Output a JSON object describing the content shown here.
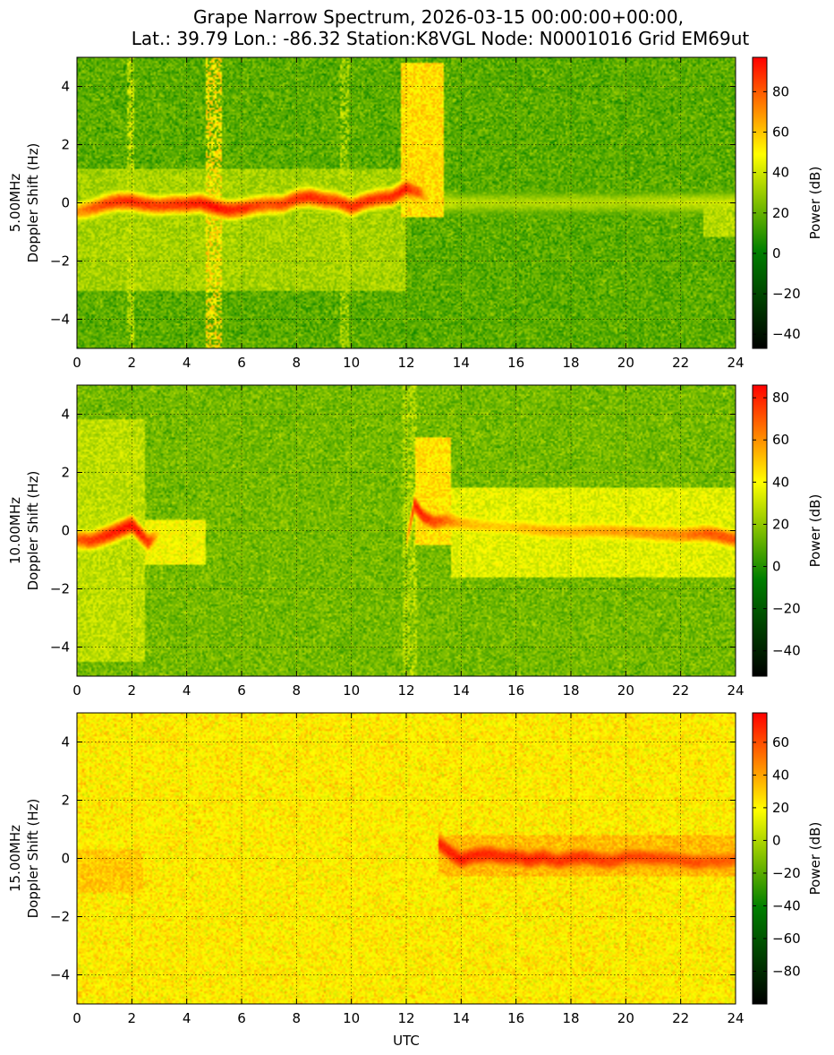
{
  "title_line1": "Grape Narrow Spectrum, 2026-03-15 00:00:00+00:00,",
  "title_line2": "Lat.: 39.79 Lon.: -86.32 Station:K8VGL Node: N0001016 Grid EM69ut",
  "colors": {
    "colormap": [
      "#000000",
      "#007f00",
      "#ffff00",
      "#ff0000"
    ],
    "grid": "#000000"
  },
  "chart_data": [
    {
      "type": "heatmap",
      "ylabel_line1": "5.00MHz",
      "ylabel_line2": "Doppler Shift (Hz)",
      "xlabel": "",
      "xlim": [
        0,
        24
      ],
      "ylim": [
        -5,
        5
      ],
      "xticks": [
        0,
        2,
        4,
        6,
        8,
        10,
        12,
        14,
        16,
        18,
        20,
        22,
        24
      ],
      "yticks": [
        -4,
        -2,
        0,
        2,
        4
      ],
      "grid": true,
      "colorbar": {
        "label": "Power (dB)",
        "range": [
          -47,
          97
        ],
        "ticks": [
          -40,
          -20,
          0,
          20,
          40,
          60,
          80
        ]
      },
      "background_level": 18,
      "noise_amplitude": 9,
      "trace": {
        "x": [
          0.0,
          0.5,
          1.0,
          1.5,
          2.0,
          2.5,
          3.0,
          3.5,
          4.0,
          4.5,
          5.0,
          5.5,
          6.0,
          6.5,
          7.0,
          7.5,
          8.0,
          8.5,
          9.0,
          9.5,
          10.0,
          10.5,
          11.0,
          11.5,
          12.0,
          12.5,
          13.0,
          14.0,
          16.0,
          18.0,
          20.0,
          22.0,
          24.0
        ],
        "y": [
          -0.3,
          -0.2,
          -0.05,
          0.05,
          0.05,
          -0.05,
          -0.1,
          -0.05,
          -0.05,
          0.0,
          -0.15,
          -0.25,
          -0.2,
          -0.1,
          -0.05,
          -0.05,
          0.15,
          0.2,
          0.1,
          0.05,
          -0.15,
          0.05,
          0.15,
          0.2,
          0.5,
          0.35,
          0.0,
          0.0,
          0.0,
          0.0,
          0.0,
          0.0,
          0.0
        ],
        "peak_level": [
          70,
          78,
          85,
          88,
          90,
          88,
          85,
          88,
          90,
          92,
          95,
          92,
          90,
          85,
          82,
          85,
          88,
          90,
          88,
          86,
          90,
          88,
          88,
          90,
          92,
          80,
          40,
          35,
          35,
          35,
          35,
          38,
          40
        ]
      },
      "features": [
        {
          "kind": "spread",
          "x0": 11.8,
          "x1": 13.4,
          "y0": -0.5,
          "y1": 4.8,
          "level": 55
        },
        {
          "kind": "spread",
          "x0": 0.0,
          "x1": 12.0,
          "y0": -3.0,
          "y1": 1.2,
          "level": 32
        },
        {
          "kind": "vertical",
          "x0": 4.7,
          "x1": 5.3,
          "level": 55
        },
        {
          "kind": "vertical",
          "x0": 1.8,
          "x1": 2.1,
          "level": 38
        },
        {
          "kind": "vertical",
          "x0": 9.6,
          "x1": 9.9,
          "level": 34
        },
        {
          "kind": "spread",
          "x0": 22.8,
          "x1": 24.0,
          "y0": -1.2,
          "y1": -0.1,
          "level": 35
        }
      ]
    },
    {
      "type": "heatmap",
      "ylabel_line1": "10.00MHz",
      "ylabel_line2": "Doppler Shift (Hz)",
      "xlabel": "",
      "xlim": [
        0,
        24
      ],
      "ylim": [
        -5,
        5
      ],
      "xticks": [
        0,
        2,
        4,
        6,
        8,
        10,
        12,
        14,
        16,
        18,
        20,
        22,
        24
      ],
      "yticks": [
        -4,
        -2,
        0,
        2,
        4
      ],
      "grid": true,
      "colorbar": {
        "label": "Power (dB)",
        "range": [
          -52,
          86
        ],
        "ticks": [
          -40,
          -20,
          0,
          20,
          40,
          60,
          80
        ]
      },
      "background_level": 15,
      "noise_amplitude": 8,
      "trace": {
        "x": [
          0.0,
          0.5,
          1.0,
          1.5,
          2.0,
          2.3,
          2.6,
          3.0,
          12.0,
          12.3,
          12.6,
          13.0,
          13.5,
          14.0,
          15.0,
          16.0,
          17.0,
          18.0,
          19.0,
          20.0,
          21.0,
          22.0,
          23.0,
          24.0
        ],
        "y": [
          -0.3,
          -0.35,
          -0.2,
          0.0,
          0.2,
          -0.1,
          -0.4,
          -0.1,
          -0.4,
          0.9,
          0.5,
          0.3,
          0.35,
          0.25,
          0.15,
          0.1,
          0.0,
          -0.05,
          0.0,
          -0.05,
          -0.1,
          -0.15,
          -0.1,
          -0.3
        ],
        "peak_level": [
          70,
          75,
          80,
          82,
          84,
          80,
          78,
          45,
          50,
          82,
          80,
          75,
          65,
          55,
          50,
          50,
          55,
          55,
          55,
          58,
          60,
          62,
          70,
          72
        ],
        "gaps": [
          [
            3.0,
            12.0
          ]
        ]
      },
      "features": [
        {
          "kind": "spread",
          "x0": 0.0,
          "x1": 2.5,
          "y0": -4.5,
          "y1": 3.8,
          "level": 28
        },
        {
          "kind": "spread",
          "x0": 2.5,
          "x1": 4.7,
          "y0": -1.2,
          "y1": 0.4,
          "level": 38
        },
        {
          "kind": "spread",
          "x0": 12.3,
          "x1": 13.6,
          "y0": -0.5,
          "y1": 3.2,
          "level": 45
        },
        {
          "kind": "spread",
          "x0": 13.6,
          "x1": 24.0,
          "y0": -1.6,
          "y1": 1.5,
          "level": 35
        },
        {
          "kind": "vertical",
          "x0": 11.9,
          "x1": 12.4,
          "level": 28
        }
      ]
    },
    {
      "type": "heatmap",
      "ylabel_line1": "15.00MHz",
      "ylabel_line2": "Doppler Shift (Hz)",
      "xlabel": "UTC",
      "xlim": [
        0,
        24
      ],
      "ylim": [
        -5,
        5
      ],
      "xticks": [
        0,
        2,
        4,
        6,
        8,
        10,
        12,
        14,
        16,
        18,
        20,
        22,
        24
      ],
      "yticks": [
        -4,
        -2,
        0,
        2,
        4
      ],
      "grid": true,
      "colorbar": {
        "label": "Power (dB)",
        "range": [
          -100,
          78
        ],
        "ticks": [
          -80,
          -60,
          -40,
          -20,
          0,
          20,
          40,
          60
        ]
      },
      "background_level": 22,
      "noise_amplitude": 10,
      "trace": {
        "x": [
          13.2,
          13.6,
          14.0,
          14.5,
          15.0,
          15.5,
          16.0,
          16.5,
          17.0,
          17.5,
          18.0,
          18.5,
          19.0,
          19.5,
          20.0,
          20.5,
          21.0,
          21.5,
          22.0,
          22.5,
          23.0,
          23.5,
          24.0
        ],
        "y": [
          0.5,
          0.2,
          -0.05,
          0.1,
          0.15,
          0.05,
          0.05,
          -0.05,
          0.05,
          -0.1,
          0.0,
          0.05,
          -0.05,
          -0.1,
          0.05,
          0.05,
          0.0,
          0.0,
          -0.05,
          -0.15,
          -0.1,
          -0.1,
          -0.05
        ],
        "peak_level": [
          70,
          72,
          72,
          70,
          70,
          68,
          68,
          70,
          68,
          66,
          68,
          66,
          64,
          64,
          62,
          62,
          62,
          60,
          60,
          60,
          58,
          58,
          56
        ]
      },
      "features": [
        {
          "kind": "spread",
          "x0": 0.0,
          "x1": 2.4,
          "y0": -1.2,
          "y1": 0.3,
          "level": 30
        },
        {
          "kind": "spread",
          "x0": 13.2,
          "x1": 24.0,
          "y0": -0.6,
          "y1": 0.8,
          "level": 34
        }
      ]
    }
  ]
}
